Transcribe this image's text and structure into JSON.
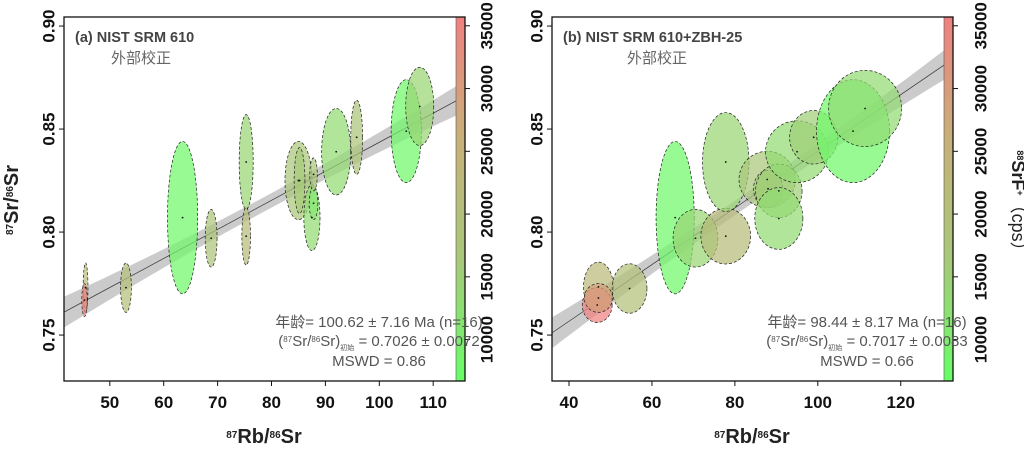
{
  "chart_data": [
    {
      "type": "scatter",
      "subtype": "isochron-error-ellipses",
      "title": "(a) NIST SRM 610",
      "subtitle": "外部校正",
      "xlabel": {
        "sup1": "87",
        "t1": "Rb/",
        "sup2": "86",
        "t2": "Sr"
      },
      "ylabel": {
        "sup1": "87",
        "t1": "Sr/",
        "sup2": "86",
        "t2": "Sr"
      },
      "xlim": [
        41.5,
        115.9
      ],
      "ylim": [
        0.7277,
        0.9044
      ],
      "xticks": [
        50,
        60,
        70,
        80,
        90,
        100,
        110
      ],
      "yticks": [
        "0.75",
        "0.80",
        "0.85",
        "0.90"
      ],
      "colorbar": {
        "range": [
          6700,
          35700
        ],
        "ticks": [
          10000,
          15000,
          20000,
          25000,
          30000,
          35000
        ],
        "colors": [
          "#66ff66",
          "#a8c87a",
          "#c8b07a",
          "#f08080"
        ]
      },
      "regression": {
        "slope": 0.00141,
        "intercept": 0.7026
      },
      "stats": {
        "age_label": "年龄",
        "age_value": "= 100.62 ± 7.16 Ma (n=16)",
        "ratio": {
          "open": "(",
          "sup1": "87",
          "t1": "Sr/",
          "sup2": "86",
          "t2": "Sr)",
          "sub": "初始",
          "value": " = 0.7026 ± 0.0072"
        },
        "mswd": "MSWD = 0.86"
      },
      "ellipses": [
        {
          "x": 45.5,
          "y": 0.773,
          "sx": 0.45,
          "sy": 0.012,
          "cps": 22000
        },
        {
          "x": 45.3,
          "y": 0.767,
          "sx": 0.5,
          "sy": 0.008,
          "cps": 35000
        },
        {
          "x": 53.0,
          "y": 0.773,
          "sx": 1.0,
          "sy": 0.012,
          "cps": 19000
        },
        {
          "x": 63.5,
          "y": 0.807,
          "sx": 2.8,
          "sy": 0.037,
          "cps": 8000
        },
        {
          "x": 68.8,
          "y": 0.797,
          "sx": 1.1,
          "sy": 0.014,
          "cps": 18000
        },
        {
          "x": 75.3,
          "y": 0.834,
          "sx": 1.3,
          "sy": 0.023,
          "cps": 14000
        },
        {
          "x": 75.3,
          "y": 0.798,
          "sx": 0.8,
          "sy": 0.014,
          "cps": 21000
        },
        {
          "x": 85.0,
          "y": 0.825,
          "sx": 2.5,
          "sy": 0.019,
          "cps": 17000
        },
        {
          "x": 85.2,
          "y": 0.825,
          "sx": 1.0,
          "sy": 0.016,
          "cps": 16000
        },
        {
          "x": 87.5,
          "y": 0.807,
          "sx": 1.5,
          "sy": 0.016,
          "cps": 13000
        },
        {
          "x": 87.8,
          "y": 0.814,
          "sx": 0.8,
          "sy": 0.008,
          "cps": 11000
        },
        {
          "x": 87.8,
          "y": 0.828,
          "sx": 0.7,
          "sy": 0.008,
          "cps": 17000
        },
        {
          "x": 92.0,
          "y": 0.839,
          "sx": 2.7,
          "sy": 0.021,
          "cps": 13000
        },
        {
          "x": 95.8,
          "y": 0.846,
          "sx": 1.1,
          "sy": 0.018,
          "cps": 18000
        },
        {
          "x": 105.0,
          "y": 0.849,
          "sx": 2.8,
          "sy": 0.025,
          "cps": 8000
        },
        {
          "x": 107.5,
          "y": 0.861,
          "sx": 2.6,
          "sy": 0.019,
          "cps": 14000
        }
      ]
    },
    {
      "type": "scatter",
      "subtype": "isochron-error-ellipses",
      "title": "(b) NIST SRM 610+ZBH-25",
      "subtitle": "外部校正",
      "xlabel": {
        "sup1": "87",
        "t1": "Rb/",
        "sup2": "86",
        "t2": "Sr"
      },
      "xlim": [
        35.9,
        132.6
      ],
      "ylim": [
        0.7277,
        0.9044
      ],
      "xticks": [
        40,
        60,
        80,
        100,
        120
      ],
      "yticks": [
        "0.75",
        "0.80",
        "0.85",
        "0.90"
      ],
      "colorbar": {
        "range": [
          6700,
          35700
        ],
        "ticks": [
          10000,
          15000,
          20000,
          25000,
          30000,
          35000
        ],
        "colors": [
          "#66ff66",
          "#a8c87a",
          "#c8b07a",
          "#f08080"
        ],
        "label": {
          "sup": "88",
          "t1": "SrF",
          "sup2": "+",
          "t2": "（cps）"
        }
      },
      "regression": {
        "slope": 0.001375,
        "intercept": 0.7017
      },
      "stats": {
        "age_label": "年龄",
        "age_value": "= 98.44 ± 8.17 Ma (n=16)",
        "ratio": {
          "open": "(",
          "sup1": "87",
          "t1": "Sr/",
          "sup2": "86",
          "t2": "Sr)",
          "sub": "初始",
          "value": " = 0.7017 ± 0.0083"
        },
        "mswd": "MSWD = 0.66"
      },
      "ellipses": [
        {
          "x": 47.1,
          "y": 0.7734,
          "sx": 3.6,
          "sy": 0.012,
          "cps": 22000
        },
        {
          "x": 46.8,
          "y": 0.7646,
          "sx": 3.6,
          "sy": 0.0085,
          "cps": 35500
        },
        {
          "x": 47.1,
          "y": 0.768,
          "sx": 3.4,
          "sy": 0.007,
          "cps": 29000
        },
        {
          "x": 54.6,
          "y": 0.7726,
          "sx": 4.2,
          "sy": 0.012,
          "cps": 19000
        },
        {
          "x": 65.6,
          "y": 0.807,
          "sx": 4.6,
          "sy": 0.037,
          "cps": 8000
        },
        {
          "x": 70.5,
          "y": 0.797,
          "sx": 5.4,
          "sy": 0.014,
          "cps": 14000
        },
        {
          "x": 77.8,
          "y": 0.798,
          "sx": 6.0,
          "sy": 0.0135,
          "cps": 21000
        },
        {
          "x": 77.8,
          "y": 0.834,
          "sx": 5.6,
          "sy": 0.024,
          "cps": 14000
        },
        {
          "x": 87.8,
          "y": 0.8255,
          "sx": 6.8,
          "sy": 0.0137,
          "cps": 17000
        },
        {
          "x": 88.0,
          "y": 0.821,
          "sx": 3.5,
          "sy": 0.009,
          "cps": 16000
        },
        {
          "x": 90.6,
          "y": 0.82,
          "sx": 5.6,
          "sy": 0.013,
          "cps": 15000
        },
        {
          "x": 90.6,
          "y": 0.8066,
          "sx": 5.8,
          "sy": 0.015,
          "cps": 13000
        },
        {
          "x": 95.0,
          "y": 0.839,
          "sx": 7.6,
          "sy": 0.015,
          "cps": 13000
        },
        {
          "x": 99.0,
          "y": 0.846,
          "sx": 5.8,
          "sy": 0.013,
          "cps": 15000
        },
        {
          "x": 108.5,
          "y": 0.849,
          "sx": 8.8,
          "sy": 0.025,
          "cps": 8000
        },
        {
          "x": 111.4,
          "y": 0.86,
          "sx": 8.8,
          "sy": 0.0185,
          "cps": 13000
        }
      ]
    }
  ]
}
